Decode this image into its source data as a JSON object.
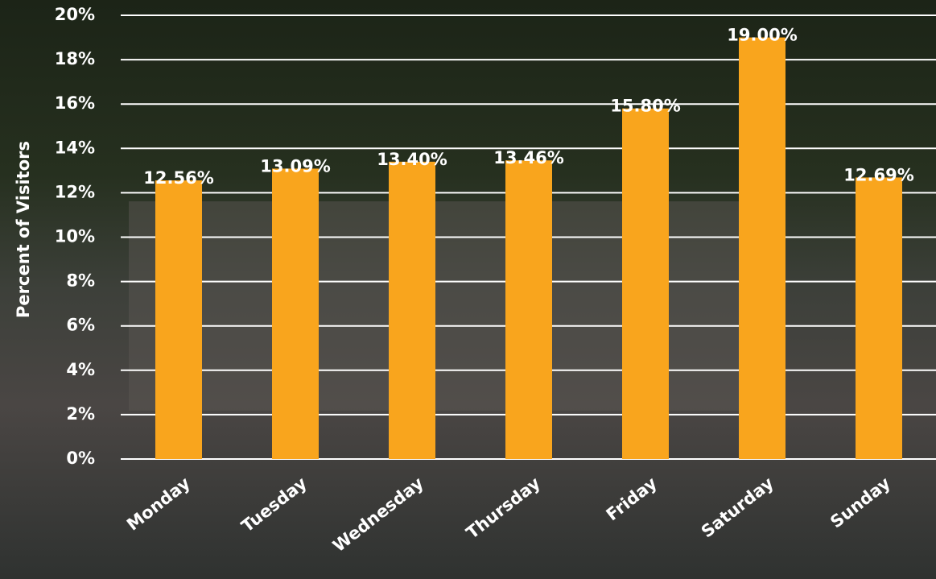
{
  "chart_data": {
    "type": "bar",
    "y_label": "Percent of Visitors",
    "categories": [
      "Monday",
      "Tuesday",
      "Wednesday",
      "Thursday",
      "Friday",
      "Saturday",
      "Sunday"
    ],
    "values": [
      12.56,
      13.09,
      13.4,
      13.46,
      15.8,
      19.0,
      12.69
    ],
    "value_labels": [
      "12.56%",
      "13.09%",
      "13.40%",
      "13.46%",
      "15.80%",
      "19.00%",
      "12.69%"
    ],
    "color": "#f9a51d",
    "ylim": [
      0,
      20
    ],
    "yticks": [
      {
        "value": 0,
        "label": "0%"
      },
      {
        "value": 2,
        "label": "2%"
      },
      {
        "value": 4,
        "label": "4%"
      },
      {
        "value": 6,
        "label": "6%"
      },
      {
        "value": 8,
        "label": "8%"
      },
      {
        "value": 10,
        "label": "10%"
      },
      {
        "value": 12,
        "label": "12%"
      },
      {
        "value": 14,
        "label": "14%"
      },
      {
        "value": 16,
        "label": "16%"
      },
      {
        "value": 18,
        "label": "18%"
      },
      {
        "value": 20,
        "label": "20%"
      }
    ],
    "grid": true
  }
}
